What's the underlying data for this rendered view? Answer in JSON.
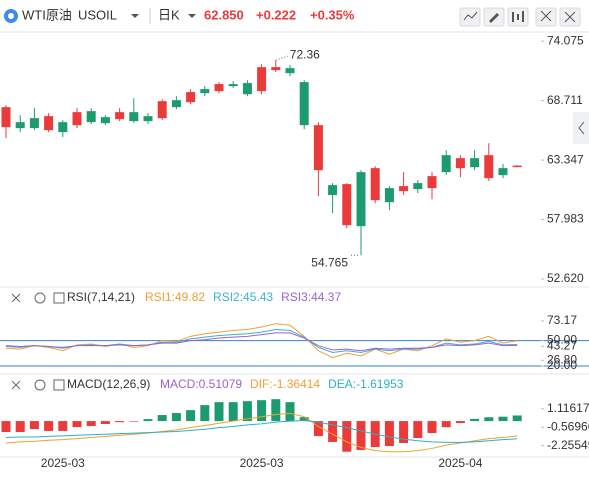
{
  "header": {
    "symbol": "WTI原油",
    "code": "USOIL",
    "period": "日K",
    "price": "62.850",
    "change": "+0.222",
    "change_pct": "+0.35%"
  },
  "chart_data": [
    {
      "type": "candlestick",
      "up_color": "#eb3a3a",
      "down_color": "#1c9b6f",
      "categories": [
        null,
        null,
        null,
        null,
        "2025-03",
        null,
        null,
        null,
        null,
        null,
        null,
        null,
        null,
        null,
        null,
        null,
        null,
        null,
        "2025-03",
        null,
        null,
        null,
        null,
        null,
        null,
        null,
        null,
        null,
        null,
        null,
        null,
        null,
        "2025-04",
        null,
        null,
        null,
        null
      ],
      "open": [
        66.32,
        66.77,
        67.13,
        66.05,
        66.77,
        66.5,
        67.76,
        67.22,
        67.04,
        67.67,
        67.31,
        67.13,
        68.75,
        68.57,
        69.75,
        69.57,
        70.2,
        70.29,
        69.57,
        71.46,
        71.64,
        70.38,
        62.44,
        61.09,
        57.48,
        62.26,
        59.73,
        60.82,
        60.55,
        61.27,
        60.82,
        63.79,
        62.62,
        63.52,
        61.72,
        62.62,
        62.71
      ],
      "high": [
        68.3,
        67.4,
        68.03,
        67.58,
        66.95,
        68.03,
        68.03,
        67.4,
        68.03,
        68.93,
        67.58,
        68.84,
        69.11,
        69.75,
        70.02,
        70.38,
        70.47,
        70.56,
        72.0,
        72.36,
        71.929,
        70.56,
        66.77,
        61.27,
        61.27,
        62.44,
        62.8,
        61.0,
        62.26,
        61.54,
        62.26,
        64.24,
        63.79,
        64.24,
        64.87,
        62.98,
        62.89
      ],
      "low": [
        65.33,
        65.87,
        66.05,
        65.87,
        65.42,
        66.23,
        66.59,
        66.5,
        66.86,
        66.68,
        66.59,
        66.95,
        67.94,
        68.39,
        69.11,
        69.38,
        69.84,
        69.11,
        69.29,
        71.28,
        70.92,
        66.14,
        60.09,
        58.56,
        57.21,
        54.765,
        59.46,
        58.83,
        60.19,
        60.37,
        59.82,
        61.99,
        61.81,
        62.44,
        61.45,
        61.72,
        62.71
      ],
      "close": [
        68.12,
        66.23,
        66.23,
        67.31,
        65.87,
        67.67,
        66.77,
        66.68,
        67.67,
        66.86,
        66.86,
        68.66,
        68.12,
        69.48,
        69.38,
        70.2,
        70.02,
        69.29,
        71.73,
        71.73,
        71.19,
        66.5,
        66.5,
        60.19,
        61.18,
        57.39,
        62.62,
        59.55,
        61.0,
        60.73,
        61.9,
        62.26,
        63.52,
        62.71,
        63.79,
        61.99,
        62.85
      ],
      "ylim": [
        51.9,
        74.9
      ],
      "yticks": [
        74.075,
        68.711,
        63.347,
        57.983,
        {
          "value": 52.62,
          "label": "52.620"
        }
      ]
    },
    {
      "type": "line",
      "title": "RSI(7,14,21)",
      "ylim": [
        13,
        86
      ],
      "yticks": [
        73.17,
        {
          "value": 50,
          "label": "50.00"
        },
        43.27,
        {
          "value": 26.8,
          "label": "26.80"
        },
        {
          "value": 20,
          "label": "20.00"
        }
      ],
      "reference_lines": [
        50,
        20
      ],
      "reference_color": "#3a7fc8",
      "series": [
        {
          "name": "RSI1:49.82",
          "color": "#f0a030",
          "values": [
            41,
            40,
            44,
            42,
            38,
            45,
            46,
            43,
            46,
            42,
            44,
            50,
            49,
            55,
            58,
            60,
            62,
            63,
            66,
            70,
            68,
            55,
            38,
            30,
            35,
            32,
            40,
            34,
            40,
            38,
            44,
            52,
            48,
            50,
            55,
            47,
            49.82
          ]
        },
        {
          "name": "RSI2:45.43",
          "color": "#3ab0d8",
          "values": [
            43,
            42,
            44,
            43,
            41,
            44,
            45,
            44,
            46,
            44,
            45,
            48,
            48,
            52,
            54,
            56,
            57,
            58,
            60,
            63,
            62,
            54,
            42,
            36,
            38,
            36,
            40,
            38,
            40,
            40,
            42,
            47,
            45,
            46,
            49,
            45,
            45.43
          ]
        },
        {
          "name": "RSI3:44.37",
          "color": "#a060d0",
          "values": [
            44,
            43,
            44,
            43,
            42,
            44,
            44,
            44,
            45,
            44,
            45,
            47,
            47,
            50,
            51,
            53,
            54,
            55,
            57,
            59,
            59,
            53,
            44,
            39,
            40,
            38,
            41,
            40,
            41,
            41,
            42,
            45,
            44,
            45,
            47,
            44,
            44.37
          ]
        }
      ]
    },
    {
      "type": "macd",
      "title": "MACD(12,26,9)",
      "ylim": [
        -3.1,
        2.2
      ],
      "yticks": [
        1.11617,
        -0.56966,
        -2.25549
      ],
      "pos_color": "#1c9b6f",
      "neg_color": "#eb3a3a",
      "histogram": {
        "name": "MACD:0.51079",
        "color": "#a060d0",
        "values": [
          -1.0,
          -1.0,
          -0.73,
          -0.9,
          -0.9,
          -0.55,
          -0.45,
          -0.27,
          -0.1,
          -0.05,
          0.18,
          0.55,
          0.73,
          1.0,
          1.46,
          1.73,
          1.73,
          1.82,
          1.91,
          2.0,
          1.73,
          0.36,
          -1.37,
          -1.91,
          -2.8,
          -2.64,
          -2.37,
          -2.28,
          -2.0,
          -1.55,
          -1.09,
          -0.55,
          -0.18,
          0.2,
          0.35,
          0.4,
          0.51079
        ]
      },
      "series": [
        {
          "name": "DIF:-1.36414",
          "color": "#f0a030",
          "values": [
            -2.0,
            -1.9,
            -1.85,
            -1.75,
            -1.7,
            -1.6,
            -1.5,
            -1.4,
            -1.3,
            -1.2,
            -1.1,
            -0.95,
            -0.8,
            -0.6,
            -0.4,
            -0.2,
            0.0,
            0.2,
            0.4,
            0.6,
            0.7,
            0.4,
            -0.5,
            -1.2,
            -1.9,
            -2.4,
            -2.7,
            -2.8,
            -2.8,
            -2.7,
            -2.5,
            -2.2,
            -2.0,
            -1.8,
            -1.6,
            -1.5,
            -1.36414
          ]
        },
        {
          "name": "DEA:-1.61953",
          "color": "#2cb0c8",
          "values": [
            -1.5,
            -1.45,
            -1.45,
            -1.4,
            -1.35,
            -1.3,
            -1.25,
            -1.2,
            -1.15,
            -1.1,
            -1.05,
            -1.0,
            -0.95,
            -0.85,
            -0.75,
            -0.6,
            -0.5,
            -0.35,
            -0.25,
            -0.1,
            0.0,
            0.05,
            -0.1,
            -0.35,
            -0.6,
            -0.9,
            -1.2,
            -1.45,
            -1.65,
            -1.8,
            -1.9,
            -1.95,
            -1.95,
            -1.9,
            -1.8,
            -1.7,
            -1.61953
          ]
        }
      ]
    }
  ]
}
